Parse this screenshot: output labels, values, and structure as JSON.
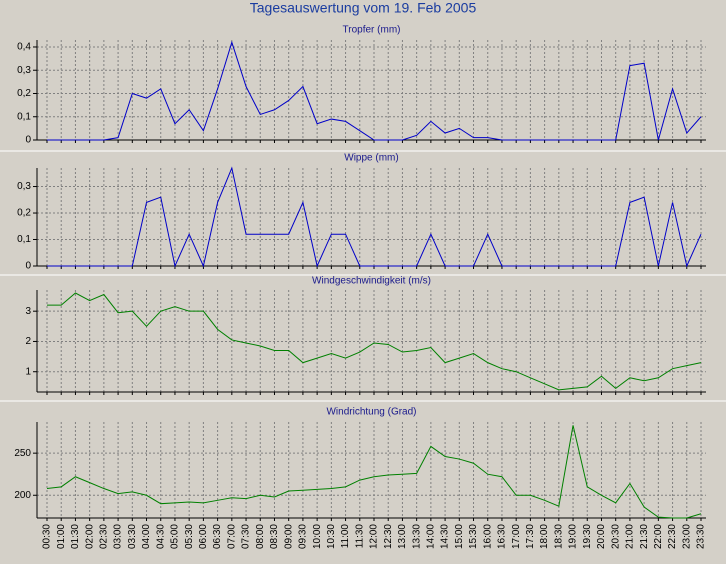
{
  "title": "Tagesauswertung vom 19. Feb 2005",
  "chart_data": [
    {
      "type": "line",
      "title": "Tropfer (mm)",
      "color": "#0000c8",
      "grid": true,
      "ylim": [
        0,
        0.43
      ],
      "yticks": [
        0,
        {
          "value": 0.1,
          "label": "0,1"
        },
        {
          "value": 0.2,
          "label": "0,2"
        },
        {
          "value": 0.3,
          "label": "0,3"
        },
        {
          "value": 0.4,
          "label": "0,4"
        }
      ],
      "values": [
        0,
        0,
        0,
        0,
        0,
        0.01,
        0.2,
        0.18,
        0.22,
        0.07,
        0.13,
        0.04,
        0.22,
        0.42,
        0.23,
        0.11,
        0.13,
        0.17,
        0.23,
        0.07,
        0.09,
        0.08,
        0.04,
        0,
        0,
        0,
        0.02,
        0.08,
        0.03,
        0.05,
        0.01,
        0.01,
        0,
        0,
        0,
        0,
        0,
        0,
        0,
        0,
        0,
        0.32,
        0.33,
        0,
        0.22,
        0.03,
        0.1
      ]
    },
    {
      "type": "line",
      "title": "Wippe (mm)",
      "color": "#0000c8",
      "grid": true,
      "ylim": [
        0,
        0.37
      ],
      "yticks": [
        0,
        {
          "value": 0.1,
          "label": "0,1"
        },
        {
          "value": 0.2,
          "label": "0,2"
        },
        {
          "value": 0.3,
          "label": "0,3"
        }
      ],
      "values": [
        0,
        0,
        0,
        0,
        0,
        0,
        0,
        0.24,
        0.26,
        0,
        0.12,
        0,
        0.24,
        0.37,
        0.12,
        0.12,
        0.12,
        0.12,
        0.24,
        0,
        0.12,
        0.12,
        0,
        0,
        0,
        0,
        0,
        0.12,
        0,
        0,
        0,
        0.12,
        0,
        0,
        0,
        0,
        0,
        0,
        0,
        0,
        0,
        0.24,
        0.26,
        0,
        0.24,
        0,
        0.12
      ]
    },
    {
      "type": "line",
      "title": "Windgeschwindigkeit (m/s)",
      "color": "#008000",
      "grid": true,
      "ylim": [
        0.33,
        3.7
      ],
      "yticks": [
        1,
        2,
        3
      ],
      "values": [
        3.2,
        3.2,
        3.6,
        3.35,
        3.55,
        2.95,
        3.0,
        2.5,
        3.0,
        3.15,
        3.0,
        3.0,
        2.4,
        2.05,
        1.95,
        1.85,
        1.7,
        1.7,
        1.3,
        1.45,
        1.6,
        1.45,
        1.65,
        1.95,
        1.9,
        1.65,
        1.7,
        1.8,
        1.3,
        1.45,
        1.6,
        1.3,
        1.1,
        1.0,
        0.8,
        0.6,
        0.4,
        0.45,
        0.5,
        0.85,
        0.45,
        0.8,
        0.7,
        0.8,
        1.1,
        1.2,
        1.3
      ]
    },
    {
      "type": "line",
      "title": "Windrichtung (Grad)",
      "color": "#008000",
      "grid": true,
      "ylim": [
        173,
        287
      ],
      "yticks": [
        200,
        250
      ],
      "categories": [
        "00:30",
        "01:00",
        "01:30",
        "02:00",
        "02:30",
        "03:00",
        "03:30",
        "04:00",
        "04:30",
        "05:00",
        "05:30",
        "06:00",
        "06:30",
        "07:00",
        "07:30",
        "08:00",
        "08:30",
        "09:00",
        "09:30",
        "10:00",
        "10:30",
        "11:00",
        "11:30",
        "12:00",
        "12:30",
        "13:00",
        "13:30",
        "14:00",
        "14:30",
        "15:00",
        "15:30",
        "16:00",
        "16:30",
        "17:00",
        "17:30",
        "18:00",
        "18:30",
        "19:00",
        "19:30",
        "20:00",
        "20:30",
        "21:00",
        "21:30",
        "22:00",
        "22:30",
        "23:00",
        "23:30"
      ],
      "values": [
        208,
        210,
        222,
        215,
        208,
        202,
        204,
        200,
        190,
        191,
        192,
        191,
        194,
        197,
        196,
        200,
        198,
        205,
        206,
        207,
        208,
        210,
        218,
        222,
        224,
        225,
        226,
        258,
        246,
        243,
        238,
        225,
        222,
        200,
        200,
        194,
        187,
        283,
        210,
        200,
        191,
        214,
        186,
        174,
        173,
        173,
        178
      ]
    }
  ]
}
